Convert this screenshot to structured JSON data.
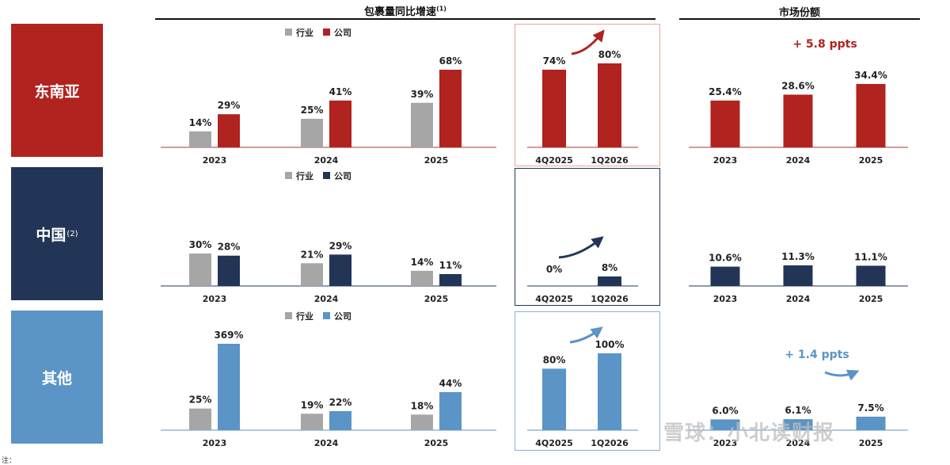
{
  "headers": {
    "growth_title": "包裹量同比增速",
    "growth_sup": "(1)",
    "share_title": "市场份额"
  },
  "legend": {
    "industry": "行业",
    "company": "公司"
  },
  "colors": {
    "industry": "#a6a6a6",
    "axis": "#b03030",
    "sea": "#b0231e",
    "china": "#223556",
    "other": "#5b94c6"
  },
  "regions": [
    {
      "key": "sea",
      "label": "东南亚",
      "sup": ""
    },
    {
      "key": "china",
      "label": "中国",
      "sup": "(2)"
    },
    {
      "key": "other",
      "label": "其他",
      "sup": ""
    }
  ],
  "chart_data": [
    {
      "type": "bar",
      "region": "东南亚",
      "panel": "包裹量同比增速",
      "categories": [
        "2023",
        "2024",
        "2025"
      ],
      "series": [
        {
          "name": "行业",
          "values": [
            14,
            25,
            39
          ],
          "labels": [
            "14%",
            "25%",
            "39%"
          ]
        },
        {
          "name": "公司",
          "values": [
            29,
            41,
            68
          ],
          "labels": [
            "29%",
            "41%",
            "68%"
          ]
        }
      ]
    },
    {
      "type": "bar",
      "region": "东南亚",
      "panel": "quarterly",
      "categories": [
        "4Q2025",
        "1Q2026"
      ],
      "values": [
        74,
        80
      ],
      "labels": [
        "74%",
        "80%"
      ]
    },
    {
      "type": "bar",
      "region": "东南亚",
      "panel": "市场份额",
      "categories": [
        "2023",
        "2024",
        "2025"
      ],
      "values": [
        25.4,
        28.6,
        34.4
      ],
      "labels": [
        "25.4%",
        "28.6%",
        "34.4%"
      ],
      "annotation": "+ 5.8 ppts"
    },
    {
      "type": "bar",
      "region": "中国",
      "panel": "包裹量同比增速",
      "categories": [
        "2023",
        "2024",
        "2025"
      ],
      "series": [
        {
          "name": "行业",
          "values": [
            30,
            21,
            14
          ],
          "labels": [
            "30%",
            "21%",
            "14%"
          ]
        },
        {
          "name": "公司",
          "values": [
            28,
            29,
            11
          ],
          "labels": [
            "28%",
            "29%",
            "11%"
          ]
        }
      ]
    },
    {
      "type": "bar",
      "region": "中国",
      "panel": "quarterly",
      "categories": [
        "4Q2025",
        "1Q2026"
      ],
      "values": [
        0,
        8
      ],
      "labels": [
        "0%",
        "8%"
      ]
    },
    {
      "type": "bar",
      "region": "中国",
      "panel": "市场份额",
      "categories": [
        "2023",
        "2024",
        "2025"
      ],
      "values": [
        10.6,
        11.3,
        11.1
      ],
      "labels": [
        "10.6%",
        "11.3%",
        "11.1%"
      ]
    },
    {
      "type": "bar",
      "region": "其他",
      "panel": "包裹量同比增速",
      "categories": [
        "2023",
        "2024",
        "2025"
      ],
      "series": [
        {
          "name": "行业",
          "values": [
            25,
            19,
            18
          ],
          "labels": [
            "25%",
            "19%",
            "18%"
          ]
        },
        {
          "name": "公司",
          "values": [
            369,
            22,
            44
          ],
          "labels": [
            "369%",
            "22%",
            "44%"
          ]
        }
      ]
    },
    {
      "type": "bar",
      "region": "其他",
      "panel": "quarterly",
      "categories": [
        "4Q2025",
        "1Q2026"
      ],
      "values": [
        80,
        100
      ],
      "labels": [
        "80%",
        "100%"
      ]
    },
    {
      "type": "bar",
      "region": "其他",
      "panel": "市场份额",
      "categories": [
        "2023",
        "2024",
        "2025"
      ],
      "values": [
        6.0,
        6.1,
        7.5
      ],
      "labels": [
        "6.0%",
        "6.1%",
        "7.5%"
      ],
      "annotation": "+ 1.4 ppts"
    }
  ],
  "watermark": "雪球：小北读财报",
  "footnote": "注："
}
